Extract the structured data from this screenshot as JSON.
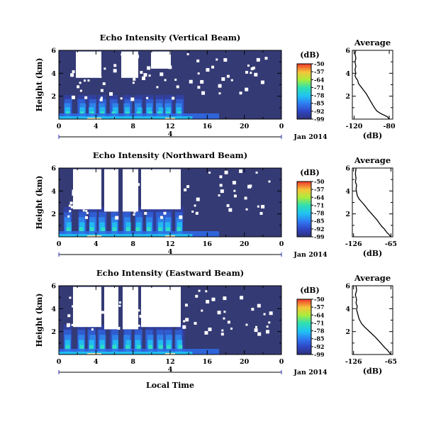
{
  "chart_data": [
    {
      "type": "heatmap",
      "title": "Echo Intensity (Vertical Beam)",
      "ylabel": "Height (km)",
      "xlabel": "",
      "x_ticks": [
        "0",
        "4",
        "8",
        "12",
        "16",
        "20",
        "0"
      ],
      "y_ticks": [
        "2",
        "4",
        "6"
      ],
      "xlim": [
        0,
        24
      ],
      "ylim": [
        0,
        6
      ],
      "date_label": "Jan 2014",
      "day_marker": "4",
      "colorbar": {
        "unit": "(dB)",
        "ticks": [
          "-50",
          "-57",
          "-64",
          "-71",
          "-78",
          "-85",
          "-92",
          "-99"
        ]
      },
      "profile": {
        "type": "line",
        "title": "Average",
        "xlabel": "(dB)",
        "x_ticks": [
          "-120",
          "-80"
        ],
        "y_ticks": [
          "2",
          "4",
          "6"
        ],
        "xlim": [
          -122,
          -76
        ],
        "ylim": [
          0,
          6
        ],
        "points": [
          [
            -80,
            0.0
          ],
          [
            -82,
            0.2
          ],
          [
            -86,
            0.35
          ],
          [
            -90,
            0.5
          ],
          [
            -94,
            0.7
          ],
          [
            -97,
            1.0
          ],
          [
            -100,
            1.4
          ],
          [
            -103,
            1.8
          ],
          [
            -106,
            2.2
          ],
          [
            -109,
            2.5
          ],
          [
            -112,
            2.8
          ],
          [
            -115,
            3.1
          ],
          [
            -116,
            3.4
          ],
          [
            -118,
            3.6
          ],
          [
            -119,
            3.8
          ],
          [
            -118,
            4.0
          ],
          [
            -119,
            4.3
          ],
          [
            -118,
            4.6
          ],
          [
            -119,
            5.0
          ],
          [
            -118,
            5.3
          ],
          [
            -119,
            5.7
          ],
          [
            -118,
            6.0
          ]
        ]
      }
    },
    {
      "type": "heatmap",
      "title": "Echo Intensity (Northward Beam)",
      "ylabel": "Height (km)",
      "xlabel": "",
      "x_ticks": [
        "0",
        "4",
        "8",
        "12",
        "16",
        "20",
        "0"
      ],
      "y_ticks": [
        "2",
        "4",
        "6"
      ],
      "xlim": [
        0,
        24
      ],
      "ylim": [
        0,
        6
      ],
      "date_label": "Jan 2014",
      "day_marker": "4",
      "colorbar": {
        "unit": "(dB)",
        "ticks": [
          "-50",
          "-57",
          "-64",
          "-71",
          "-78",
          "-85",
          "-92",
          "-99"
        ]
      },
      "profile": {
        "type": "line",
        "title": "Average",
        "xlabel": "(dB)",
        "x_ticks": [
          "-126",
          "-65"
        ],
        "y_ticks": [
          "2",
          "4",
          "6"
        ],
        "xlim": [
          -128,
          -62
        ],
        "ylim": [
          0,
          6
        ],
        "points": [
          [
            -65,
            0.0
          ],
          [
            -68,
            0.2
          ],
          [
            -72,
            0.4
          ],
          [
            -76,
            0.7
          ],
          [
            -80,
            0.9
          ],
          [
            -84,
            1.2
          ],
          [
            -88,
            1.5
          ],
          [
            -93,
            1.8
          ],
          [
            -98,
            2.1
          ],
          [
            -103,
            2.4
          ],
          [
            -107,
            2.7
          ],
          [
            -112,
            3.0
          ],
          [
            -117,
            3.3
          ],
          [
            -120,
            3.6
          ],
          [
            -121,
            3.9
          ],
          [
            -122,
            4.2
          ],
          [
            -121,
            4.5
          ],
          [
            -123,
            4.8
          ],
          [
            -122,
            5.1
          ],
          [
            -123,
            5.5
          ],
          [
            -122,
            6.0
          ]
        ]
      }
    },
    {
      "type": "heatmap",
      "title": "Echo Intensity (Eastward Beam)",
      "ylabel": "Height (km)",
      "xlabel": "Local Time",
      "x_ticks": [
        "0",
        "4",
        "8",
        "12",
        "16",
        "20",
        "0"
      ],
      "y_ticks": [
        "2",
        "4",
        "6"
      ],
      "xlim": [
        0,
        24
      ],
      "ylim": [
        0,
        6
      ],
      "date_label": "Jan 2014",
      "day_marker": "4",
      "colorbar": {
        "unit": "(dB)",
        "ticks": [
          "-50",
          "-57",
          "-64",
          "-71",
          "-78",
          "-85",
          "-92",
          "-99"
        ]
      },
      "profile": {
        "type": "line",
        "title": "Average",
        "xlabel": "(dB)",
        "x_ticks": [
          "-126",
          "-65"
        ],
        "y_ticks": [
          "2",
          "4",
          "6"
        ],
        "xlim": [
          -128,
          -62
        ],
        "ylim": [
          0,
          6
        ],
        "points": [
          [
            -65,
            0.0
          ],
          [
            -68,
            0.2
          ],
          [
            -71,
            0.4
          ],
          [
            -75,
            0.6
          ],
          [
            -80,
            0.9
          ],
          [
            -85,
            1.2
          ],
          [
            -90,
            1.5
          ],
          [
            -96,
            1.8
          ],
          [
            -102,
            2.1
          ],
          [
            -108,
            2.4
          ],
          [
            -113,
            2.7
          ],
          [
            -117,
            3.1
          ],
          [
            -119,
            3.5
          ],
          [
            -121,
            3.9
          ],
          [
            -120,
            4.2
          ],
          [
            -122,
            4.5
          ],
          [
            -121,
            4.8
          ],
          [
            -123,
            5.2
          ],
          [
            -121,
            5.6
          ],
          [
            -122,
            6.0
          ]
        ]
      }
    }
  ]
}
